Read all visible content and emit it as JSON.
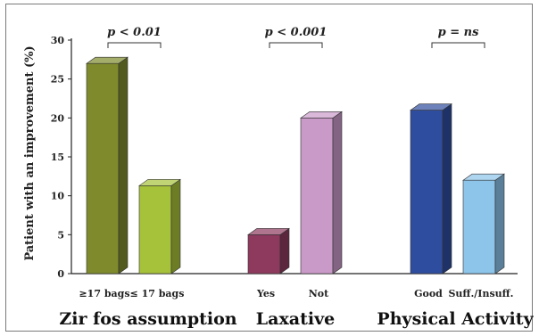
{
  "chart_data": {
    "type": "bar",
    "ylabel": "Patient with an improvement (%)",
    "ylim": [
      0,
      30
    ],
    "yticks": [
      0,
      5,
      10,
      15,
      20,
      25,
      30
    ],
    "grid": false,
    "groups": [
      {
        "name": "Zir fos assumption",
        "bars": [
          {
            "label": "≥17 bags",
            "value": 27,
            "color": "#7e8a2c"
          },
          {
            "label": "≤ 17 bags",
            "value": 11.3,
            "color": "#a6c13a"
          }
        ],
        "annotation": "p < 0.01"
      },
      {
        "name": "Laxative",
        "bars": [
          {
            "label": "Yes",
            "value": 5,
            "color": "#8e3a5e"
          },
          {
            "label": "Not",
            "value": 20,
            "color": "#c99ac8"
          }
        ],
        "annotation": "p < 0.001"
      },
      {
        "name": "Physical Activity",
        "bars": [
          {
            "label": "Good",
            "value": 21,
            "color": "#2f4d9e"
          },
          {
            "label": "Suff./Insuff.",
            "value": 12,
            "color": "#8cc4ea"
          }
        ],
        "annotation": "p = ns"
      }
    ]
  }
}
